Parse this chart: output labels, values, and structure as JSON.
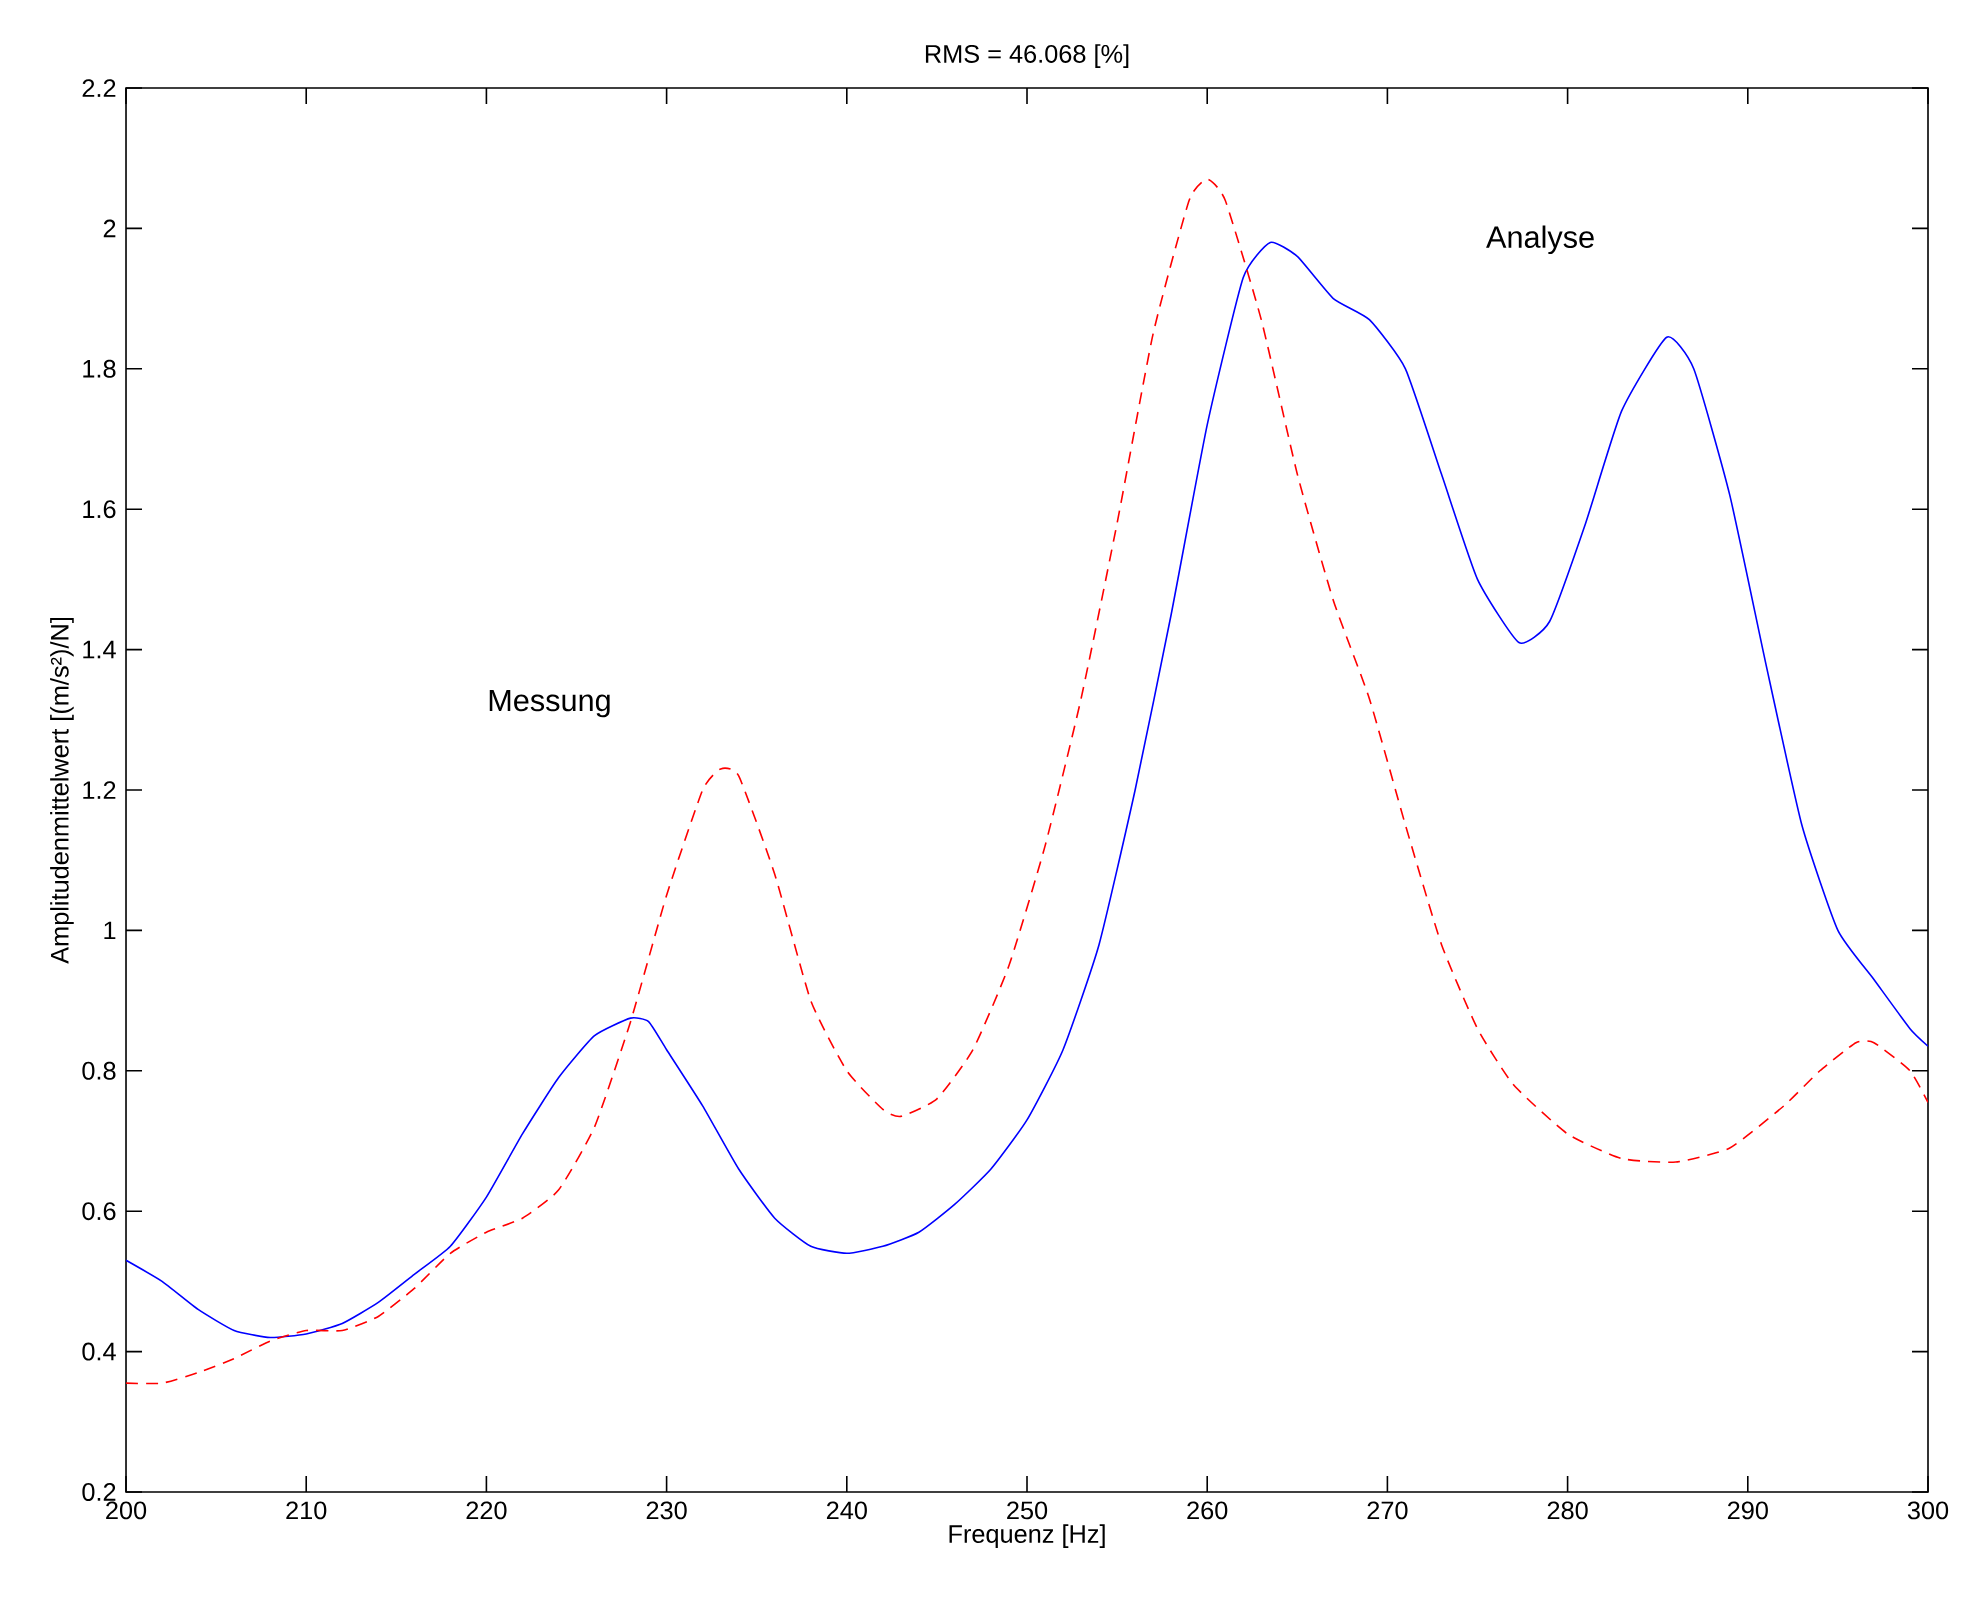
{
  "chart_data": {
    "type": "line",
    "title": "RMS = 46.068 [%]",
    "xlabel": "Frequenz [Hz]",
    "ylabel": "Amplitudenmittelwert [(m/s²)/N]",
    "xlim": [
      200,
      300
    ],
    "xticks": [
      200,
      210,
      220,
      230,
      240,
      250,
      260,
      270,
      280,
      290,
      300
    ],
    "ylim": [
      0.2,
      2.2
    ],
    "yticks": [
      0.2,
      0.4,
      0.6,
      0.8,
      1,
      1.2,
      1.4,
      1.6,
      1.8,
      2,
      2.2
    ],
    "annotations": [
      "Messung",
      "Analyse"
    ],
    "series": [
      {
        "color": "#0000ff",
        "line_style": "solid",
        "x": [
          200,
          202,
          204,
          206,
          208,
          210,
          212,
          214,
          216,
          218,
          220,
          222,
          224,
          226,
          228,
          229,
          230,
          232,
          234,
          236,
          238,
          240,
          242,
          244,
          246,
          248,
          250,
          252,
          254,
          256,
          258,
          260,
          262,
          263.5,
          265,
          267,
          269,
          271,
          273,
          275,
          277.3,
          279,
          281,
          283,
          285.5,
          287,
          289,
          291,
          293,
          295,
          297,
          299,
          300
        ],
        "values": [
          0.53,
          0.5,
          0.46,
          0.43,
          0.42,
          0.425,
          0.44,
          0.47,
          0.51,
          0.55,
          0.62,
          0.71,
          0.79,
          0.85,
          0.875,
          0.87,
          0.83,
          0.75,
          0.66,
          0.59,
          0.55,
          0.54,
          0.55,
          0.57,
          0.61,
          0.66,
          0.73,
          0.83,
          0.98,
          1.2,
          1.45,
          1.72,
          1.93,
          1.98,
          1.96,
          1.9,
          1.87,
          1.8,
          1.65,
          1.5,
          1.41,
          1.44,
          1.58,
          1.74,
          1.845,
          1.8,
          1.62,
          1.38,
          1.15,
          1.0,
          0.93,
          0.86,
          0.835
        ]
      },
      {
        "color": "#ff0000",
        "line_style": "dashed",
        "x": [
          200,
          202,
          204,
          206,
          208,
          210,
          212,
          214,
          216,
          218,
          220,
          222,
          224,
          226,
          228,
          230,
          232,
          233,
          234,
          236,
          238,
          240,
          242,
          243,
          245,
          247,
          249,
          251,
          253,
          255,
          257,
          259,
          260,
          261,
          263,
          265,
          267,
          269,
          271,
          273,
          275,
          277,
          280,
          283,
          286,
          289,
          292,
          294,
          296,
          297,
          299,
          300
        ],
        "values": [
          0.355,
          0.355,
          0.37,
          0.39,
          0.415,
          0.43,
          0.43,
          0.45,
          0.49,
          0.54,
          0.57,
          0.59,
          0.63,
          0.72,
          0.87,
          1.05,
          1.2,
          1.23,
          1.22,
          1.08,
          0.9,
          0.8,
          0.745,
          0.735,
          0.76,
          0.83,
          0.95,
          1.12,
          1.33,
          1.58,
          1.85,
          2.04,
          2.07,
          2.04,
          1.87,
          1.65,
          1.47,
          1.33,
          1.15,
          0.98,
          0.86,
          0.78,
          0.71,
          0.675,
          0.67,
          0.69,
          0.75,
          0.8,
          0.84,
          0.84,
          0.8,
          0.755
        ]
      }
    ]
  }
}
